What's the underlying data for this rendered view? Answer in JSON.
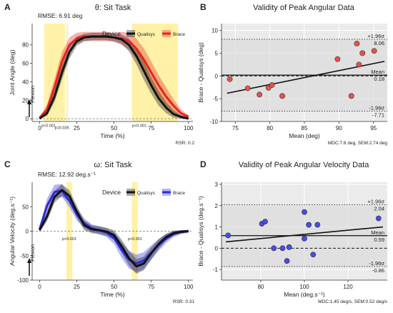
{
  "colors": {
    "qualisys": "#111111",
    "brace_theta": "#e8231e",
    "brace_omega": "#2b2bd9",
    "highlight": "#fff1a8",
    "panel_bg": "#ebebeb",
    "band": "#d9d9d9",
    "point_red": "#e8514b",
    "point_blue": "#4a4ae6"
  },
  "chart_data": [
    {
      "id": "A",
      "type": "line",
      "panel_letter": "A",
      "title": "θ: Sit Task",
      "rmse": "RMSE: 6.91 deg",
      "xlabel": "Time (%)",
      "ylabel": "Joint Angle (deg)",
      "xlim": [
        -5,
        103
      ],
      "ylim": [
        -3,
        103
      ],
      "xticks": [
        0,
        25,
        50,
        75,
        100
      ],
      "yticks": [
        0,
        20,
        40,
        60,
        80
      ],
      "legend_title": "Device",
      "legend_position": "top-right",
      "direction_label": "Flexion",
      "highlight_regions": [
        [
          3,
          17
        ],
        [
          18,
          19
        ],
        [
          62,
          93
        ]
      ],
      "p_labels": [
        {
          "text": "p<0.001",
          "x": 6,
          "y": -2
        },
        {
          "text": "p=0.035",
          "x": 15,
          "y": -4
        },
        {
          "text": "p<0.001",
          "x": 67,
          "y": -2
        }
      ],
      "footer": "RSR: 0.2",
      "x": [
        0,
        5,
        10,
        15,
        20,
        25,
        30,
        35,
        40,
        45,
        50,
        55,
        60,
        65,
        70,
        75,
        80,
        85,
        90,
        95,
        100
      ],
      "series": [
        {
          "name": "Qualisys",
          "values": [
            0,
            6,
            24,
            50,
            72,
            84,
            88,
            89,
            89,
            89,
            88,
            86,
            80,
            68,
            52,
            36,
            22,
            12,
            5,
            2,
            0
          ],
          "spread": [
            0,
            3,
            6,
            8,
            7,
            5,
            4,
            4,
            4,
            4,
            4,
            5,
            7,
            9,
            10,
            9,
            8,
            6,
            4,
            2,
            1
          ]
        },
        {
          "name": "Brace",
          "values": [
            1,
            10,
            34,
            62,
            80,
            87,
            89,
            89,
            89,
            89,
            88,
            87,
            84,
            76,
            64,
            50,
            36,
            24,
            14,
            6,
            2
          ],
          "spread": [
            1,
            5,
            9,
            10,
            8,
            6,
            5,
            5,
            5,
            5,
            5,
            7,
            9,
            11,
            12,
            12,
            11,
            10,
            7,
            4,
            2
          ]
        }
      ]
    },
    {
      "id": "B",
      "type": "scatter",
      "panel_letter": "B",
      "title": "Validity of Peak Angular Data",
      "xlabel": "Mean (deg)",
      "ylabel": "Brace - Qualisys (deg)",
      "xlim": [
        73,
        97
      ],
      "ylim": [
        -10,
        11.5
      ],
      "xticks": [
        75,
        80,
        85,
        90,
        95
      ],
      "yticks": [
        -10,
        -5,
        0,
        5,
        10
      ],
      "limits": [
        {
          "name": "+1.96σ",
          "value": 8.06,
          "label": "8.06"
        },
        {
          "name": "Mean",
          "value": 0.18,
          "label": "0.18"
        },
        {
          "name": "-1.96σ",
          "value": -7.71,
          "label": "-7.71"
        }
      ],
      "footer": "MDC:7.6 deg, SEM:2.74 deg",
      "points": [
        {
          "x": 74.2,
          "y": -0.7
        },
        {
          "x": 76.8,
          "y": -2.7
        },
        {
          "x": 78.5,
          "y": -4.1
        },
        {
          "x": 79.8,
          "y": -2.6
        },
        {
          "x": 80.3,
          "y": -2.0
        },
        {
          "x": 81.8,
          "y": -4.4
        },
        {
          "x": 89.8,
          "y": 3.7
        },
        {
          "x": 91.8,
          "y": -4.4
        },
        {
          "x": 92.6,
          "y": 7.1
        },
        {
          "x": 92.9,
          "y": 2.5
        },
        {
          "x": 93.4,
          "y": 5.0
        },
        {
          "x": 95.1,
          "y": 5.5
        }
      ],
      "regression": {
        "x": [
          73.8,
          96.6
        ],
        "y": [
          -3.8,
          3.2
        ]
      }
    },
    {
      "id": "C",
      "type": "line",
      "panel_letter": "C",
      "title": "ω: Sit Task",
      "rmse": "RMSE: 12.92 deg.s⁻¹",
      "xlabel": "Time (%)",
      "ylabel": "Angular Velocity (deg.s⁻¹)",
      "xlim": [
        -5,
        103
      ],
      "ylim": [
        -100,
        100
      ],
      "xticks": [
        0,
        25,
        50,
        75,
        100
      ],
      "yticks": [
        -100,
        -50,
        0,
        50
      ],
      "legend_title": "Device",
      "legend_position": "top-right",
      "direction_label": "Flexion",
      "highlight_regions": [
        [
          18,
          22
        ],
        [
          62,
          66
        ]
      ],
      "p_labels": [
        {
          "text": "p<0.001",
          "x": 20,
          "y": -5
        },
        {
          "text": "p<0.001",
          "x": 64,
          "y": -5
        }
      ],
      "footer": "RSR: 0.31",
      "x": [
        0,
        5,
        10,
        15,
        20,
        25,
        30,
        35,
        40,
        45,
        50,
        55,
        60,
        65,
        70,
        75,
        80,
        85,
        90,
        95,
        100
      ],
      "series": [
        {
          "name": "Qualisys",
          "values": [
            2,
            30,
            70,
            84,
            72,
            40,
            12,
            4,
            2,
            -1,
            -8,
            -30,
            -55,
            -72,
            -66,
            -45,
            -26,
            -12,
            -4,
            -1,
            0
          ],
          "spread": [
            3,
            10,
            12,
            12,
            12,
            12,
            10,
            8,
            8,
            8,
            10,
            13,
            15,
            15,
            14,
            12,
            10,
            7,
            5,
            3,
            2
          ]
        },
        {
          "name": "Brace",
          "values": [
            4,
            52,
            80,
            83,
            62,
            34,
            16,
            6,
            2,
            -3,
            -14,
            -38,
            -58,
            -66,
            -60,
            -44,
            -28,
            -15,
            -6,
            -2,
            0
          ],
          "spread": [
            5,
            14,
            15,
            13,
            13,
            12,
            10,
            8,
            8,
            9,
            12,
            16,
            18,
            18,
            17,
            15,
            12,
            9,
            6,
            4,
            3
          ]
        }
      ]
    },
    {
      "id": "D",
      "type": "scatter",
      "panel_letter": "D",
      "title": "Validity of Peak Angular Velocity Data",
      "xlabel": "Mean (deg.s⁻¹)",
      "ylabel": "Brace - Qualisys (deg.s⁻¹)",
      "xlim": [
        62,
        138
      ],
      "ylim": [
        -1.5,
        3.1
      ],
      "xticks": [
        80,
        100,
        120
      ],
      "yticks": [
        -1,
        0,
        1,
        2,
        3
      ],
      "limits": [
        {
          "name": "+1.96σ",
          "value": 2.04,
          "label": "2.04"
        },
        {
          "name": "Mean",
          "value": 0.59,
          "label": "0.59"
        },
        {
          "name": "-1.96σ",
          "value": -0.86,
          "label": "-0.86"
        }
      ],
      "footer": "MDC:1.45 deg/s, SEM:0.52 deg/s",
      "points": [
        {
          "x": 65,
          "y": 0.6
        },
        {
          "x": 80.5,
          "y": 1.15
        },
        {
          "x": 82,
          "y": 1.25
        },
        {
          "x": 86,
          "y": 0.0
        },
        {
          "x": 90,
          "y": 0.0
        },
        {
          "x": 92,
          "y": -0.6
        },
        {
          "x": 93,
          "y": 0.05
        },
        {
          "x": 100,
          "y": 1.7
        },
        {
          "x": 100,
          "y": 0.45
        },
        {
          "x": 102,
          "y": 1.1
        },
        {
          "x": 104,
          "y": -0.3
        },
        {
          "x": 106,
          "y": 1.1
        },
        {
          "x": 134,
          "y": 1.4
        }
      ],
      "regression": {
        "x": [
          64,
          136
        ],
        "y": [
          0.3,
          1.0
        ]
      }
    }
  ]
}
